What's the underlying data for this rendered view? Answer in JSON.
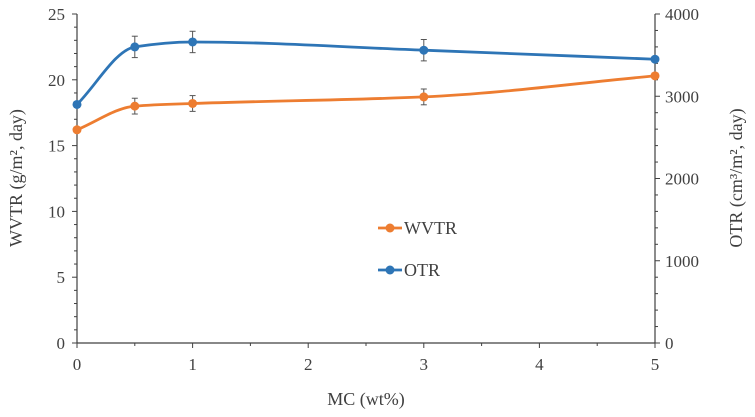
{
  "chart_data": {
    "type": "line",
    "xlabel": "MC (wt%)",
    "ylabel_left": "WVTR (g/m², day)",
    "ylabel_right": "OTR (cm³/m², day)",
    "xlim": [
      0,
      5
    ],
    "ylim_left": [
      0,
      25
    ],
    "ylim_right": [
      0,
      4000
    ],
    "x_ticks": [
      "0",
      "1",
      "2",
      "3",
      "4",
      "5"
    ],
    "y_left_ticks": [
      "0",
      "5",
      "10",
      "15",
      "20",
      "25"
    ],
    "y_right_ticks": [
      "0",
      "1000",
      "2000",
      "3000",
      "4000"
    ],
    "grid": false,
    "legend_position": "center",
    "series": [
      {
        "name": "WVTR",
        "axis": "left",
        "color": "#ED7D31",
        "x": [
          0,
          0.5,
          1,
          3,
          5
        ],
        "y": [
          16.2,
          18.0,
          18.2,
          18.7,
          20.3
        ],
        "error": [
          0,
          0.6,
          0.6,
          0.6,
          0
        ]
      },
      {
        "name": "OTR",
        "axis": "right",
        "color": "#2E75B6",
        "x": [
          0,
          0.5,
          1,
          3,
          5
        ],
        "y": [
          2900,
          3600,
          3660,
          3560,
          3450
        ],
        "error": [
          0,
          130,
          130,
          130,
          0
        ]
      }
    ]
  }
}
